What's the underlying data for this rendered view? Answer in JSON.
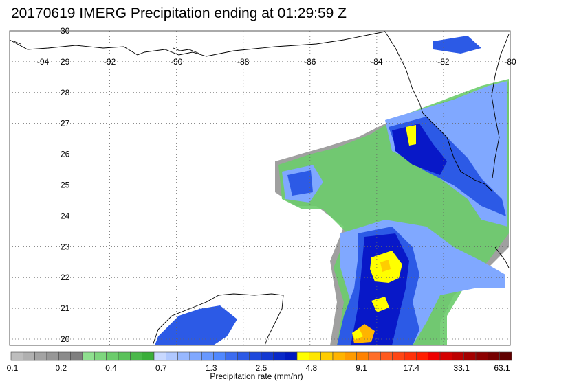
{
  "title": "20170619 IMERG Precipitation ending at 01:29:59 Z",
  "map": {
    "lon_min": -95,
    "lon_max": -80,
    "lat_min": 19.8,
    "lat_max": 30,
    "lon_ticks": [
      "-94",
      "-92",
      "-90",
      "-88",
      "-86",
      "-84",
      "-82",
      "-80"
    ],
    "lat_ticks": [
      "30",
      "29",
      "28",
      "27",
      "26",
      "25",
      "24",
      "23",
      "22",
      "21",
      "20"
    ],
    "grid": "dotted"
  },
  "colorbar": {
    "label": "Precipitation rate (mm/hr)",
    "tick_labels": [
      "0.1",
      "0.2",
      "0.4",
      "0.7",
      "1.3",
      "2.5",
      "4.8",
      "9.1",
      "17.4",
      "33.1",
      "63.1"
    ],
    "colors": [
      "#bdbdbd",
      "#b0b0b0",
      "#a3a3a3",
      "#979797",
      "#8b8b8b",
      "#7f7f7f",
      "#8fe08f",
      "#7ed67e",
      "#6ccc6c",
      "#5bc25b",
      "#4ab84a",
      "#3aae3a",
      "#c8d8ff",
      "#b0c8ff",
      "#98b8ff",
      "#80a8ff",
      "#6898ff",
      "#5088ff",
      "#3c6cf0",
      "#2c5ae6",
      "#1e48dc",
      "#1238d2",
      "#0828c8",
      "#0018be",
      "#ffff00",
      "#ffe600",
      "#ffcd00",
      "#ffb400",
      "#ff9b00",
      "#ff8200",
      "#ff6e28",
      "#ff5a1e",
      "#ff4614",
      "#ff320a",
      "#ff1e00",
      "#ee0000",
      "#d40000",
      "#bc0000",
      "#a40000",
      "#8c0000",
      "#760000",
      "#600000"
    ]
  },
  "precip_colors": {
    "gray": "#a0a0a0",
    "green": "#6ccc6c",
    "light_blue": "#80a8ff",
    "blue": "#2c5ae6",
    "dark_blue": "#0818c8",
    "yellow": "#ffff00",
    "orange": "#ffb400"
  }
}
